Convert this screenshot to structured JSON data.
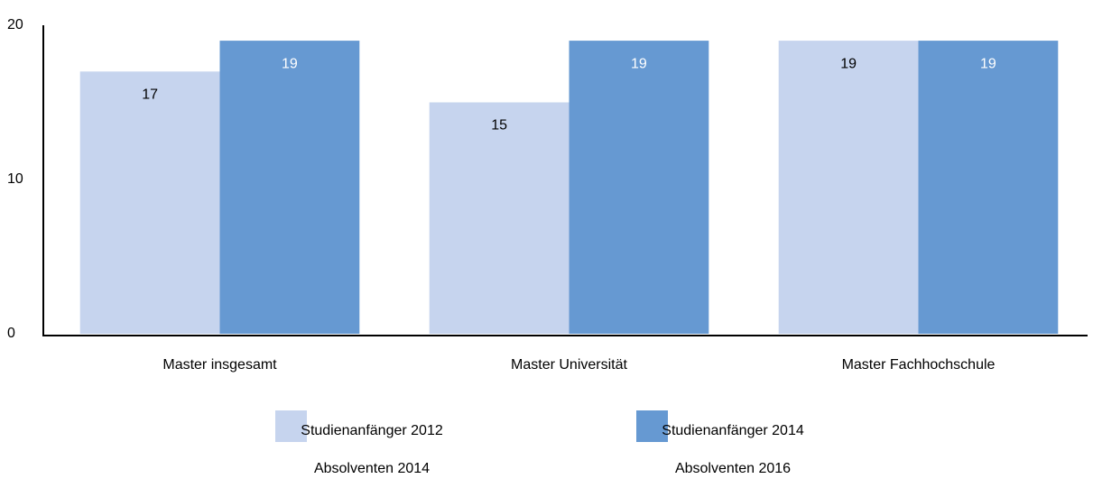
{
  "chart_data": {
    "type": "bar",
    "categories": [
      "Master insgesamt",
      "Master Universität",
      "Master Fachhochschule"
    ],
    "series": [
      {
        "name": "Studienanfänger 2012\nAbsolventen 2014",
        "color": "#c6d4ee",
        "label_color": "#000000",
        "values": [
          17,
          15,
          19
        ]
      },
      {
        "name": "Studienanfänger 2014\nAbsolventen 2016",
        "color": "#6699d2",
        "label_color": "#ffffff",
        "values": [
          19,
          19,
          19
        ]
      }
    ],
    "ylim": [
      0,
      20
    ],
    "yticks": [
      0,
      10,
      20
    ],
    "grid": false
  }
}
